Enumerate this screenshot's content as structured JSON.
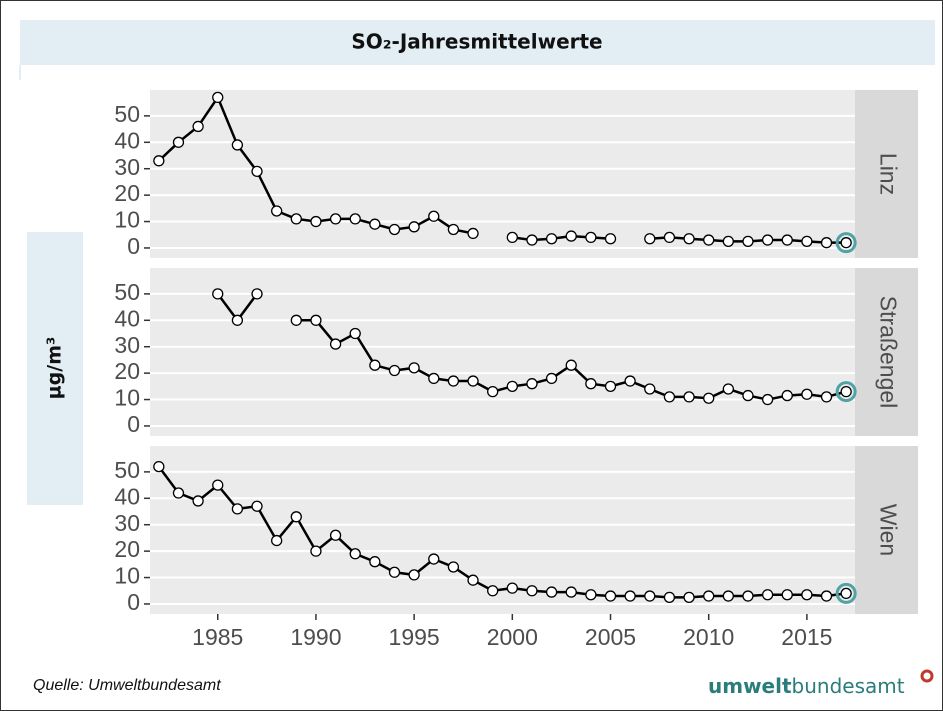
{
  "header": {
    "title": "SO₂-Jahresmittelwerte"
  },
  "y_label": "µg/m³",
  "source": "Quelle: Umweltbundesamt",
  "logo": {
    "bold": "umwelt",
    "rest": "bundesamt"
  },
  "chart_data": [
    {
      "type": "line",
      "title": "Linz",
      "x": [
        1982,
        1983,
        1984,
        1985,
        1986,
        1987,
        1988,
        1989,
        1990,
        1991,
        1992,
        1993,
        1994,
        1995,
        1996,
        1997,
        1998,
        1999,
        2000,
        2001,
        2002,
        2003,
        2004,
        2005,
        2006,
        2007,
        2008,
        2009,
        2010,
        2011,
        2012,
        2013,
        2014,
        2015,
        2016,
        2017
      ],
      "values": [
        33,
        40,
        46,
        57,
        39,
        29,
        14,
        11,
        10,
        11,
        11,
        9,
        7,
        8,
        12,
        7,
        5.5,
        null,
        4,
        3,
        3.5,
        4.5,
        4,
        3.5,
        null,
        3.5,
        4,
        3.5,
        3,
        2.5,
        2.5,
        3,
        3,
        2.5,
        2,
        2
      ],
      "xlim": [
        1981.55,
        2017.45
      ],
      "ylim": [
        -3.8,
        59.8
      ],
      "yticks": [
        0,
        10,
        20,
        30,
        40,
        50
      ],
      "line_color": "#000000",
      "marker_fill": "#ffffff",
      "highlight_color": "#4fa3a5",
      "grid": true
    },
    {
      "type": "line",
      "title": "Straßengel",
      "x": [
        1982,
        1983,
        1984,
        1985,
        1986,
        1987,
        1988,
        1989,
        1990,
        1991,
        1992,
        1993,
        1994,
        1995,
        1996,
        1997,
        1998,
        1999,
        2000,
        2001,
        2002,
        2003,
        2004,
        2005,
        2006,
        2007,
        2008,
        2009,
        2010,
        2011,
        2012,
        2013,
        2014,
        2015,
        2016,
        2017
      ],
      "values": [
        null,
        null,
        null,
        50,
        40,
        50,
        null,
        40,
        40,
        31,
        35,
        23,
        21,
        22,
        18,
        17,
        17,
        13,
        15,
        16,
        18,
        23,
        16,
        15,
        17,
        14,
        11,
        11,
        10.5,
        14,
        11.5,
        10,
        11.5,
        12,
        11,
        13
      ],
      "xlim": [
        1981.55,
        2017.45
      ],
      "ylim": [
        -3.8,
        59.8
      ],
      "yticks": [
        0,
        10,
        20,
        30,
        40,
        50
      ],
      "line_color": "#000000",
      "marker_fill": "#ffffff",
      "highlight_color": "#4fa3a5",
      "grid": true
    },
    {
      "type": "line",
      "title": "Wien",
      "x": [
        1982,
        1983,
        1984,
        1985,
        1986,
        1987,
        1988,
        1989,
        1990,
        1991,
        1992,
        1993,
        1994,
        1995,
        1996,
        1997,
        1998,
        1999,
        2000,
        2001,
        2002,
        2003,
        2004,
        2005,
        2006,
        2007,
        2008,
        2009,
        2010,
        2011,
        2012,
        2013,
        2014,
        2015,
        2016,
        2017
      ],
      "values": [
        52,
        42,
        39,
        45,
        36,
        37,
        24,
        33,
        20,
        26,
        19,
        16,
        12,
        11,
        17,
        14,
        9,
        5,
        6,
        5,
        4.5,
        4.5,
        3.5,
        3,
        3,
        3,
        2.5,
        2.5,
        3,
        3,
        3,
        3.5,
        3.5,
        3.5,
        3,
        4
      ],
      "xlim": [
        1981.55,
        2017.45
      ],
      "ylim": [
        -3.8,
        59.8
      ],
      "yticks": [
        0,
        10,
        20,
        30,
        40,
        50
      ],
      "xticks": [
        1985,
        1990,
        1995,
        2000,
        2005,
        2010,
        2015
      ],
      "line_color": "#000000",
      "marker_fill": "#ffffff",
      "highlight_color": "#4fa3a5",
      "grid": true
    }
  ]
}
